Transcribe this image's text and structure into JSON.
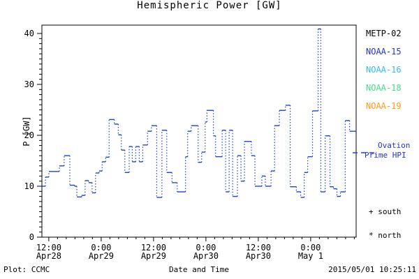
{
  "title": "Hemispheric Power [GW]",
  "colors": {
    "background": "#ffffff",
    "axis": "#000000",
    "line": "#2244cc",
    "metp02": "#000000",
    "noaa15": "#2233cc",
    "noaa16": "#33bbee",
    "noaa18": "#44dd88",
    "noaa19": "#ff9911"
  },
  "y_axis": {
    "label": "P [GW]",
    "min": 0,
    "max": 40,
    "major_tick_values": [
      0,
      10,
      20,
      30,
      40
    ],
    "minor_step": 1
  },
  "x_axis": {
    "label": "Date and Time",
    "span_hours": 72,
    "minor_step_hours": 2,
    "major_ticks": [
      {
        "hour": 1.58,
        "time": "12:00",
        "date": "Apr28"
      },
      {
        "hour": 13.58,
        "time": "0:00",
        "date": "Apr29"
      },
      {
        "hour": 25.58,
        "time": "12:00",
        "date": "Apr29"
      },
      {
        "hour": 37.58,
        "time": "0:00",
        "date": "Apr30"
      },
      {
        "hour": 49.58,
        "time": "12:00",
        "date": "Apr30"
      },
      {
        "hour": 61.58,
        "time": "0:00",
        "date": "May 1"
      }
    ]
  },
  "legend": {
    "satellites": [
      {
        "label": "METP-02",
        "color": "#000000"
      },
      {
        "label": "NOAA-15",
        "color": "#2233cc"
      },
      {
        "label": "NOAA-16",
        "color": "#33bbee"
      },
      {
        "label": "NOAA-18",
        "color": "#44dd88"
      },
      {
        "label": "NOAA-19",
        "color": "#ff9911"
      }
    ],
    "line_label_1": "Ovation",
    "line_label_2": "Prime HPI",
    "marker_south": "+ south",
    "marker_north": "* north"
  },
  "footer": {
    "left": "Plot: CCMC",
    "center": "Date and Time",
    "right": "2015/05/01 10:25:11"
  },
  "chart_data": {
    "type": "line",
    "subtype": "step",
    "title": "Hemispheric Power [GW]",
    "xlabel": "Date and Time",
    "ylabel": "P [GW]",
    "x_start": "2015-04-28 10:25",
    "x_end": "2015-05-01 10:25",
    "xlim_hours": [
      0,
      72
    ],
    "ylim": [
      0,
      40
    ],
    "grid": false,
    "legend_position": "right-outside",
    "series": [
      {
        "name": "Ovation Prime HPI",
        "color": "#2244cc",
        "units": "GW",
        "points_hour_gw": [
          [
            0.0,
            10.0
          ],
          [
            0.8,
            11.8
          ],
          [
            1.6,
            12.9
          ],
          [
            4.0,
            14.0
          ],
          [
            5.1,
            16.0
          ],
          [
            6.4,
            10.2
          ],
          [
            7.5,
            10.0
          ],
          [
            8.0,
            7.9
          ],
          [
            9.1,
            8.2
          ],
          [
            9.9,
            11.1
          ],
          [
            10.7,
            10.7
          ],
          [
            11.5,
            8.7
          ],
          [
            12.3,
            12.6
          ],
          [
            13.1,
            13.0
          ],
          [
            13.8,
            14.8
          ],
          [
            14.6,
            15.7
          ],
          [
            15.4,
            23.1
          ],
          [
            16.6,
            22.2
          ],
          [
            17.5,
            20.1
          ],
          [
            18.2,
            17.1
          ],
          [
            19.0,
            12.7
          ],
          [
            20.0,
            17.8
          ],
          [
            20.7,
            14.8
          ],
          [
            21.5,
            17.8
          ],
          [
            22.3,
            14.8
          ],
          [
            23.1,
            18.1
          ],
          [
            24.2,
            20.8
          ],
          [
            25.1,
            21.9
          ],
          [
            26.3,
            7.8
          ],
          [
            27.5,
            21.0
          ],
          [
            28.6,
            12.7
          ],
          [
            29.8,
            10.7
          ],
          [
            31.0,
            8.9
          ],
          [
            32.9,
            15.8
          ],
          [
            33.4,
            20.8
          ],
          [
            34.2,
            21.9
          ],
          [
            35.8,
            14.7
          ],
          [
            36.6,
            16.7
          ],
          [
            37.4,
            22.6
          ],
          [
            37.8,
            24.9
          ],
          [
            39.3,
            19.9
          ],
          [
            39.8,
            15.8
          ],
          [
            41.3,
            21.0
          ],
          [
            42.1,
            8.9
          ],
          [
            42.9,
            21.0
          ],
          [
            43.7,
            8.0
          ],
          [
            44.8,
            16.0
          ],
          [
            45.6,
            11.0
          ],
          [
            46.4,
            18.8
          ],
          [
            48.0,
            16.0
          ],
          [
            48.8,
            10.0
          ],
          [
            50.4,
            12.0
          ],
          [
            51.2,
            10.0
          ],
          [
            52.5,
            13.0
          ],
          [
            53.3,
            21.9
          ],
          [
            54.4,
            24.9
          ],
          [
            55.8,
            25.9
          ],
          [
            56.9,
            9.9
          ],
          [
            58.3,
            8.9
          ],
          [
            59.3,
            7.8
          ],
          [
            60.1,
            12.7
          ],
          [
            60.9,
            15.8
          ],
          [
            62.0,
            24.8
          ],
          [
            63.3,
            40.9
          ],
          [
            63.9,
            8.9
          ],
          [
            64.9,
            19.9
          ],
          [
            66.0,
            9.9
          ],
          [
            66.8,
            9.5
          ],
          [
            67.6,
            8.0
          ],
          [
            68.4,
            8.9
          ],
          [
            69.5,
            22.9
          ],
          [
            70.5,
            20.8
          ]
        ]
      }
    ]
  }
}
